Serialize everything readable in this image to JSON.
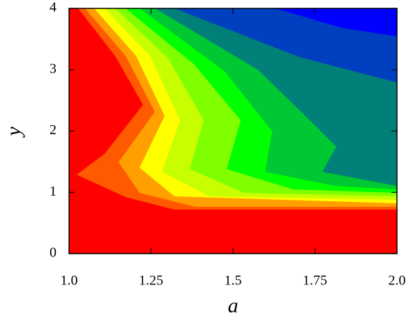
{
  "chart_data": {
    "type": "contour",
    "xlabel": "a",
    "ylabel": "y",
    "xlim": [
      1,
      2
    ],
    "ylim": [
      0,
      4
    ],
    "xticks": [
      {
        "value": 1,
        "label": "1.0"
      },
      1.25,
      1.5,
      1.75,
      {
        "value": 2,
        "label": "2.0"
      }
    ],
    "yticks": [
      0,
      1,
      2,
      3,
      4
    ],
    "colors": [
      "#ff0000",
      "#ff5a00",
      "#ffa000",
      "#ffff00",
      "#c8ff00",
      "#80ff00",
      "#00ff00",
      "#00c832",
      "#008078",
      "#0040c0",
      "#0000ff"
    ]
  }
}
